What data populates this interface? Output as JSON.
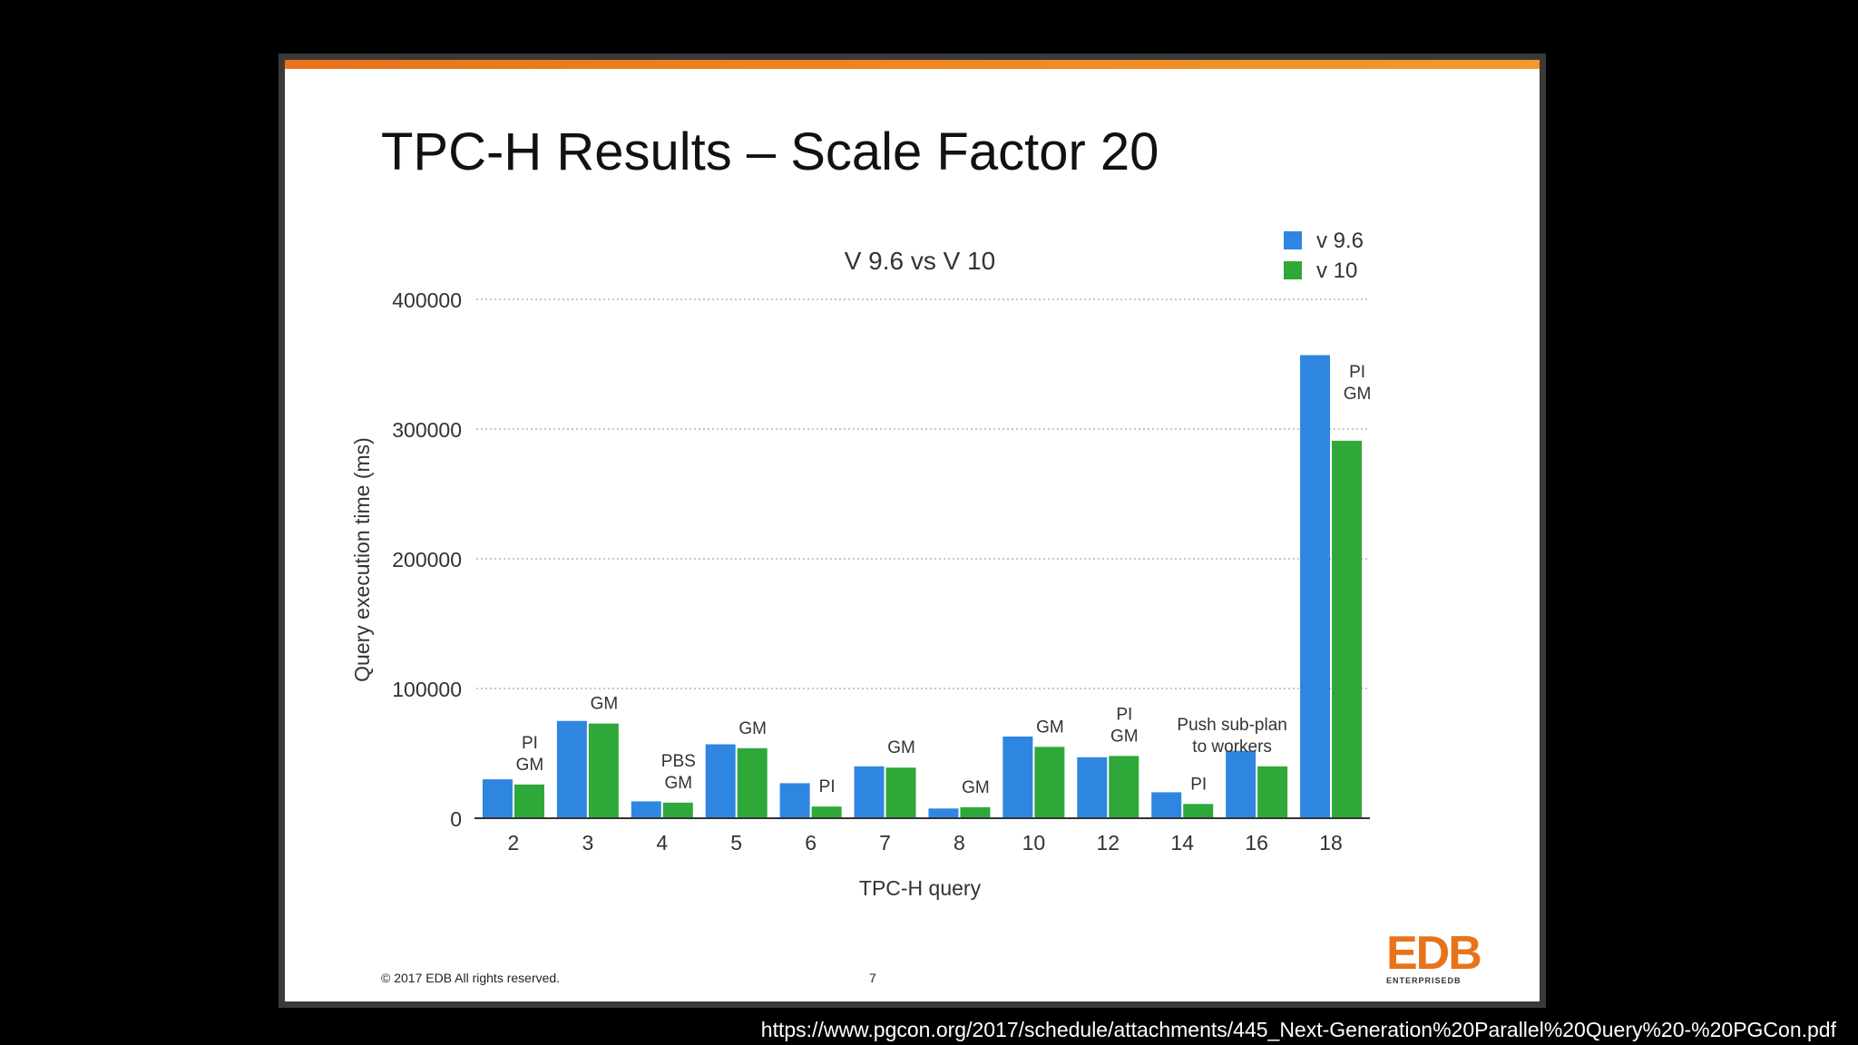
{
  "slide": {
    "title": "TPC-H Results – Scale Factor 20",
    "copyright": "© 2017 EDB All rights reserved.",
    "page_number": "7",
    "logo_text": "EDB",
    "logo_subtext": "ENTERPRISEDB"
  },
  "source_url": "https://www.pgcon.org/2017/schedule/attachments/445_Next-Generation%20Parallel%20Query%20-%20PGCon.pdf",
  "colors": {
    "v96": "#2f86e0",
    "v10": "#2fa83a",
    "accent": "#e8731a"
  },
  "chart_data": {
    "type": "bar",
    "title": "V 9.6 vs V 10",
    "xlabel": "TPC-H query",
    "ylabel": "Query execution time (ms)",
    "ylim": [
      0,
      400000
    ],
    "yticks": [
      "0",
      "100000",
      "200000",
      "300000",
      "400000"
    ],
    "grid": true,
    "legend_position": "top-right",
    "categories": [
      "2",
      "3",
      "4",
      "5",
      "6",
      "7",
      "8",
      "10",
      "12",
      "14",
      "16",
      "18"
    ],
    "series": [
      {
        "name": "v 9.6",
        "values": [
          30000,
          75000,
          13000,
          57000,
          27000,
          40000,
          7500,
          63000,
          47000,
          20000,
          52000,
          357000
        ]
      },
      {
        "name": "v 10",
        "values": [
          26000,
          73000,
          12000,
          54000,
          9000,
          39000,
          8500,
          55000,
          48000,
          11000,
          40000,
          291000
        ]
      }
    ],
    "annotations": [
      {
        "category": "2",
        "text": [
          "PI",
          "GM"
        ]
      },
      {
        "category": "3",
        "text": [
          "GM"
        ]
      },
      {
        "category": "4",
        "text": [
          "PBS",
          "GM"
        ]
      },
      {
        "category": "5",
        "text": [
          "GM"
        ]
      },
      {
        "category": "6",
        "text": [
          "PI"
        ]
      },
      {
        "category": "7",
        "text": [
          "GM"
        ]
      },
      {
        "category": "8",
        "text": [
          "GM"
        ]
      },
      {
        "category": "10",
        "text": [
          "GM"
        ]
      },
      {
        "category": "12",
        "text": [
          "PI",
          "GM"
        ]
      },
      {
        "category": "14",
        "text": [
          "PI"
        ]
      },
      {
        "category": "16",
        "text": [
          "Push sub-plan",
          "to workers"
        ]
      },
      {
        "category": "18",
        "text": [
          "PI",
          "GM"
        ]
      }
    ]
  }
}
